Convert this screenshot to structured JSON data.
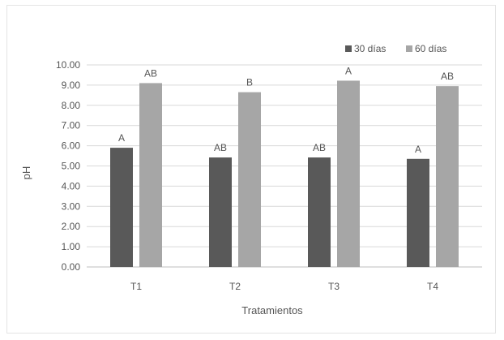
{
  "chart_data": {
    "type": "bar",
    "title": "",
    "xlabel": "Tratamientos",
    "ylabel": "pH",
    "categories": [
      "T1",
      "T2",
      "T3",
      "T4"
    ],
    "ylim": [
      0,
      10
    ],
    "yticks": [
      "0.00",
      "1.00",
      "2.00",
      "3.00",
      "4.00",
      "5.00",
      "6.00",
      "7.00",
      "8.00",
      "9.00",
      "10.00"
    ],
    "grid": true,
    "legend_position": "top-right",
    "series": [
      {
        "name": "30 días",
        "color": "#595959",
        "values": [
          5.9,
          5.42,
          5.42,
          5.35
        ],
        "labels": [
          "A",
          "AB",
          "AB",
          "A"
        ]
      },
      {
        "name": "60 días",
        "color": "#a6a6a6",
        "values": [
          9.1,
          8.65,
          9.22,
          8.95
        ],
        "labels": [
          "AB",
          "B",
          "A",
          "AB"
        ]
      }
    ]
  }
}
